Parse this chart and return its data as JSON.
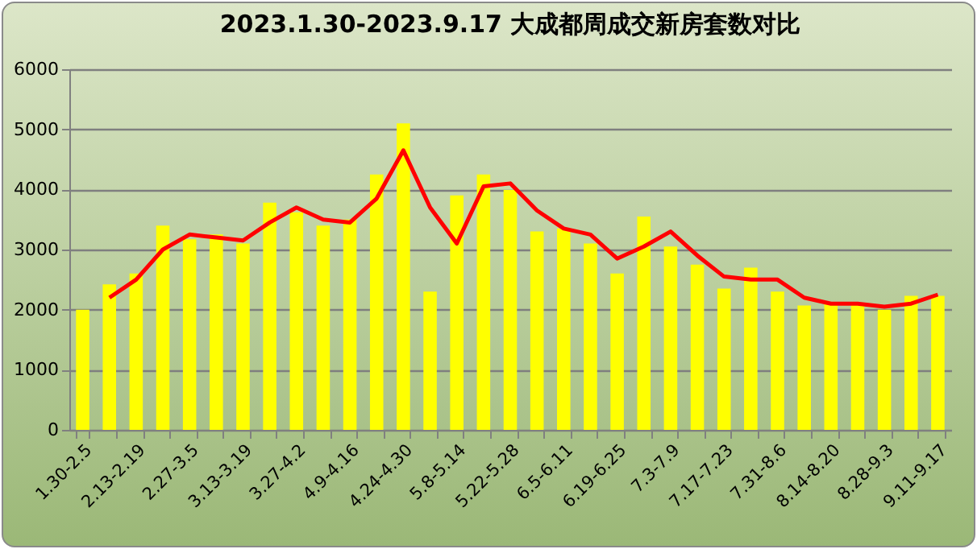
{
  "chart_data": {
    "type": "bar",
    "title": "2023.1.30-2023.9.17 大成都周成交新房套数对比",
    "categories": [
      "1.30-2.5",
      null,
      "2.13-2.19",
      null,
      "2.27-3.5",
      null,
      "3.13-3.19",
      null,
      "3.27-4.2",
      null,
      "4.9-4.16",
      null,
      "4.24-4.30",
      null,
      "5.8-5.14",
      null,
      "5.22-5.28",
      null,
      "6.5-6.11",
      null,
      "6.19-6.25",
      null,
      "7.3-7.9",
      null,
      "7.17-7.23",
      null,
      "7.31-8.6",
      null,
      "8.14-8.20",
      null,
      "8.28-9.3",
      null,
      "9.11-9.17"
    ],
    "series": [
      {
        "color": "#ffff00",
        "values": [
          2000,
          2420,
          2600,
          3400,
          3170,
          3250,
          3100,
          3780,
          3620,
          3400,
          3500,
          4250,
          5100,
          2300,
          3900,
          4250,
          3990,
          3300,
          3350,
          3100,
          2600,
          3550,
          3050,
          2750,
          2350,
          2700,
          2300,
          2070,
          2100,
          2080,
          2000,
          2230,
          2230
        ]
      },
      {
        "type": "line",
        "color": "#ff0000",
        "values": [
          null,
          2200,
          2500,
          3000,
          3250,
          3200,
          3150,
          3450,
          3700,
          3500,
          3450,
          3850,
          4650,
          3700,
          3100,
          4050,
          4100,
          3650,
          3350,
          3250,
          2850,
          3050,
          3300,
          2900,
          2550,
          2500,
          2500,
          2200,
          2100,
          2100,
          2050,
          2100,
          2250
        ]
      }
    ],
    "ylim": [
      0,
      6000
    ],
    "yticks": [
      0,
      1000,
      2000,
      3000,
      4000,
      5000,
      6000
    ],
    "grid": "y"
  }
}
